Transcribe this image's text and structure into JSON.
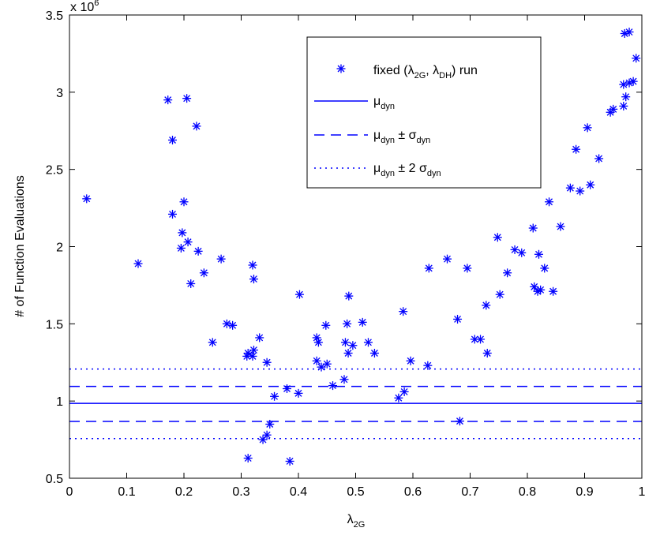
{
  "chart_data": {
    "type": "scatter",
    "x_axis": {
      "label_main": "λ",
      "label_sub": "2G",
      "ticks": [
        "0",
        "0.1",
        "0.2",
        "0.3",
        "0.4",
        "0.5",
        "0.6",
        "0.7",
        "0.8",
        "0.9",
        "1"
      ],
      "range": [
        0,
        1
      ]
    },
    "y_axis": {
      "label": "# of Function Evaluations",
      "ticks": [
        "0.5",
        "1",
        "1.5",
        "2",
        "2.5",
        "3",
        "3.5"
      ],
      "multiplier": "x 10",
      "multiplier_exp": "6",
      "range": [
        0.5,
        3.5
      ]
    },
    "grid": false,
    "legend_position": "top-right",
    "legend": {
      "scatter": {
        "p1": "fixed (λ",
        "s1": "2G",
        "p2": ", λ",
        "s2": "DH",
        "p3": ") run"
      },
      "mean": {
        "p1": "μ",
        "s1": "dyn"
      },
      "one_sigma": {
        "p1": "μ",
        "s1": "dyn",
        "p2": " ± σ",
        "s2": "dyn"
      },
      "two_sigma": {
        "p1": "μ",
        "s1": "dyn",
        "p2": " ± 2 σ",
        "s2": "dyn"
      }
    },
    "reference_lines": {
      "mean": 0.985,
      "one_sigma_upper": 1.095,
      "one_sigma_lower": 0.868,
      "two_sigma_upper": 1.207,
      "two_sigma_lower": 0.757
    },
    "color": "#0000ff",
    "points": [
      {
        "x": 0.03,
        "y": 2.31
      },
      {
        "x": 0.12,
        "y": 1.89
      },
      {
        "x": 0.172,
        "y": 2.95
      },
      {
        "x": 0.205,
        "y": 2.96
      },
      {
        "x": 0.222,
        "y": 2.78
      },
      {
        "x": 0.18,
        "y": 2.69
      },
      {
        "x": 0.18,
        "y": 2.21
      },
      {
        "x": 0.2,
        "y": 2.29
      },
      {
        "x": 0.197,
        "y": 2.09
      },
      {
        "x": 0.195,
        "y": 1.99
      },
      {
        "x": 0.207,
        "y": 2.03
      },
      {
        "x": 0.225,
        "y": 1.97
      },
      {
        "x": 0.235,
        "y": 1.83
      },
      {
        "x": 0.212,
        "y": 1.76
      },
      {
        "x": 0.25,
        "y": 1.38
      },
      {
        "x": 0.265,
        "y": 1.92
      },
      {
        "x": 0.275,
        "y": 1.5
      },
      {
        "x": 0.285,
        "y": 1.49
      },
      {
        "x": 0.31,
        "y": 1.29
      },
      {
        "x": 0.312,
        "y": 1.31
      },
      {
        "x": 0.32,
        "y": 1.88
      },
      {
        "x": 0.322,
        "y": 1.79
      },
      {
        "x": 0.322,
        "y": 1.33
      },
      {
        "x": 0.32,
        "y": 1.29
      },
      {
        "x": 0.332,
        "y": 1.41
      },
      {
        "x": 0.345,
        "y": 1.25
      },
      {
        "x": 0.312,
        "y": 0.63
      },
      {
        "x": 0.338,
        "y": 0.75
      },
      {
        "x": 0.345,
        "y": 0.78
      },
      {
        "x": 0.35,
        "y": 0.85
      },
      {
        "x": 0.358,
        "y": 1.03
      },
      {
        "x": 0.38,
        "y": 1.08
      },
      {
        "x": 0.385,
        "y": 0.61
      },
      {
        "x": 0.4,
        "y": 1.05
      },
      {
        "x": 0.402,
        "y": 1.69
      },
      {
        "x": 0.432,
        "y": 1.41
      },
      {
        "x": 0.435,
        "y": 1.38
      },
      {
        "x": 0.432,
        "y": 1.26
      },
      {
        "x": 0.44,
        "y": 1.22
      },
      {
        "x": 0.45,
        "y": 1.24
      },
      {
        "x": 0.448,
        "y": 1.49
      },
      {
        "x": 0.46,
        "y": 1.1
      },
      {
        "x": 0.48,
        "y": 1.14
      },
      {
        "x": 0.482,
        "y": 1.38
      },
      {
        "x": 0.485,
        "y": 1.5
      },
      {
        "x": 0.487,
        "y": 1.31
      },
      {
        "x": 0.488,
        "y": 1.68
      },
      {
        "x": 0.495,
        "y": 1.36
      },
      {
        "x": 0.512,
        "y": 1.51
      },
      {
        "x": 0.522,
        "y": 1.38
      },
      {
        "x": 0.533,
        "y": 1.31
      },
      {
        "x": 0.575,
        "y": 1.02
      },
      {
        "x": 0.585,
        "y": 1.06
      },
      {
        "x": 0.583,
        "y": 1.58
      },
      {
        "x": 0.596,
        "y": 1.26
      },
      {
        "x": 0.626,
        "y": 1.23
      },
      {
        "x": 0.628,
        "y": 1.86
      },
      {
        "x": 0.66,
        "y": 1.92
      },
      {
        "x": 0.678,
        "y": 1.53
      },
      {
        "x": 0.682,
        "y": 0.87
      },
      {
        "x": 0.695,
        "y": 1.86
      },
      {
        "x": 0.708,
        "y": 1.4
      },
      {
        "x": 0.718,
        "y": 1.4
      },
      {
        "x": 0.73,
        "y": 1.31
      },
      {
        "x": 0.728,
        "y": 1.62
      },
      {
        "x": 0.748,
        "y": 2.06
      },
      {
        "x": 0.752,
        "y": 1.69
      },
      {
        "x": 0.765,
        "y": 1.83
      },
      {
        "x": 0.778,
        "y": 1.98
      },
      {
        "x": 0.79,
        "y": 1.96
      },
      {
        "x": 0.81,
        "y": 2.12
      },
      {
        "x": 0.812,
        "y": 1.74
      },
      {
        "x": 0.818,
        "y": 1.71
      },
      {
        "x": 0.82,
        "y": 1.95
      },
      {
        "x": 0.823,
        "y": 1.72
      },
      {
        "x": 0.83,
        "y": 1.86
      },
      {
        "x": 0.838,
        "y": 2.29
      },
      {
        "x": 0.845,
        "y": 1.71
      },
      {
        "x": 0.858,
        "y": 2.13
      },
      {
        "x": 0.875,
        "y": 2.38
      },
      {
        "x": 0.885,
        "y": 2.63
      },
      {
        "x": 0.892,
        "y": 2.36
      },
      {
        "x": 0.905,
        "y": 2.77
      },
      {
        "x": 0.91,
        "y": 2.4
      },
      {
        "x": 0.925,
        "y": 2.57
      },
      {
        "x": 0.945,
        "y": 2.87
      },
      {
        "x": 0.95,
        "y": 2.89
      },
      {
        "x": 0.968,
        "y": 3.05
      },
      {
        "x": 0.968,
        "y": 2.91
      },
      {
        "x": 0.972,
        "y": 2.97
      },
      {
        "x": 0.97,
        "y": 3.38
      },
      {
        "x": 0.978,
        "y": 3.39
      },
      {
        "x": 0.978,
        "y": 3.06
      },
      {
        "x": 0.985,
        "y": 3.07
      },
      {
        "x": 0.99,
        "y": 3.22
      }
    ]
  }
}
